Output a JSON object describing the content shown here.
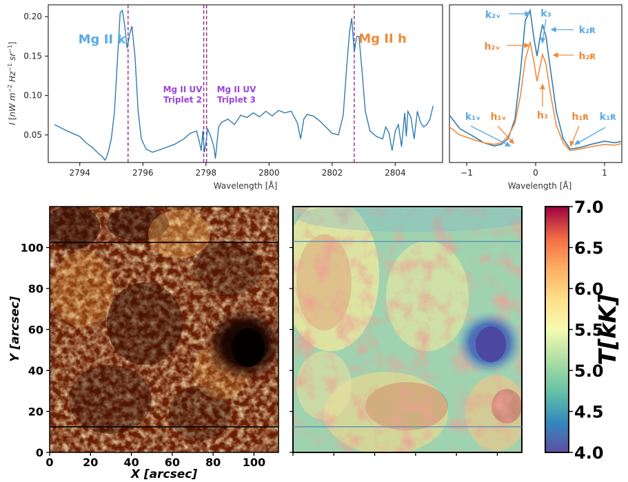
{
  "chart_data": [
    {
      "type": "line",
      "panel": "spectrum",
      "xlabel": "Wavelength [Å]",
      "ylabel": "I [nW m⁻² Hz⁻¹ sr⁻¹]",
      "ylabel_parts": {
        "var": "I ",
        "unit": "nW m",
        "e1": "−2",
        "hz": " Hz",
        "e2": "−1",
        "sr": " sr",
        "e3": "−1"
      },
      "xlim": [
        2793,
        2805.5
      ],
      "ylim": [
        0.015,
        0.215
      ],
      "xticks": [
        2794,
        2796,
        2798,
        2800,
        2802,
        2804
      ],
      "yticks": [
        0.05,
        0.1,
        0.15,
        0.2
      ],
      "ytick_labels": [
        "0.05",
        "0.10",
        "0.15",
        "0.20"
      ],
      "line_color": "#2f7ab0",
      "vlines": [
        2795.53,
        2797.93,
        2798.02,
        2802.7
      ],
      "vline_color": "#8b1a8b",
      "annotations": {
        "mgk": "Mg II k",
        "mgh": "Mg II h",
        "trip2_a": "Mg II UV",
        "trip2_b": "Triplet 2",
        "trip3_a": "Mg II UV",
        "trip3_b": "Triplet 3"
      },
      "x": [
        2793.2,
        2793.6,
        2794.0,
        2794.2,
        2794.4,
        2794.5,
        2794.6,
        2794.7,
        2794.8,
        2794.85,
        2794.9,
        2795.0,
        2795.1,
        2795.2,
        2795.28,
        2795.35,
        2795.42,
        2795.5,
        2795.58,
        2795.65,
        2795.75,
        2795.85,
        2795.95,
        2796.1,
        2796.3,
        2796.6,
        2797.0,
        2797.3,
        2797.5,
        2797.7,
        2797.8,
        2797.85,
        2797.9,
        2797.95,
        2798.0,
        2798.05,
        2798.15,
        2798.25,
        2798.3,
        2798.4,
        2798.5,
        2798.7,
        2798.9,
        2799.1,
        2799.3,
        2799.5,
        2799.7,
        2799.9,
        2800.1,
        2800.3,
        2800.5,
        2800.7,
        2800.9,
        2801.0,
        2801.1,
        2801.2,
        2801.4,
        2801.6,
        2801.8,
        2802.0,
        2802.2,
        2802.35,
        2802.45,
        2802.55,
        2802.62,
        2802.7,
        2802.78,
        2802.85,
        2802.95,
        2803.05,
        2803.2,
        2803.4,
        2803.6,
        2803.7,
        2803.8,
        2803.9,
        2804.0,
        2804.1,
        2804.2,
        2804.3,
        2804.35,
        2804.4,
        2804.5,
        2804.6,
        2804.7,
        2804.8,
        2804.9,
        2805.0,
        2805.1,
        2805.2
      ],
      "y": [
        0.063,
        0.055,
        0.048,
        0.04,
        0.034,
        0.03,
        0.026,
        0.023,
        0.018,
        0.022,
        0.028,
        0.045,
        0.08,
        0.15,
        0.205,
        0.208,
        0.19,
        0.16,
        0.178,
        0.188,
        0.15,
        0.08,
        0.045,
        0.032,
        0.028,
        0.032,
        0.038,
        0.045,
        0.052,
        0.055,
        0.04,
        0.03,
        0.055,
        0.028,
        0.04,
        0.058,
        0.048,
        0.035,
        0.02,
        0.06,
        0.066,
        0.07,
        0.063,
        0.075,
        0.072,
        0.078,
        0.073,
        0.08,
        0.074,
        0.081,
        0.078,
        0.08,
        0.065,
        0.045,
        0.07,
        0.076,
        0.074,
        0.068,
        0.06,
        0.052,
        0.05,
        0.075,
        0.13,
        0.18,
        0.198,
        0.155,
        0.175,
        0.175,
        0.13,
        0.08,
        0.055,
        0.048,
        0.045,
        0.06,
        0.053,
        0.03,
        0.055,
        0.063,
        0.035,
        0.078,
        0.048,
        0.08,
        0.072,
        0.045,
        0.08,
        0.066,
        0.06,
        0.063,
        0.07,
        0.087
      ]
    },
    {
      "type": "line",
      "panel": "profiles",
      "xlabel": "Wavelength [Å]",
      "xlim": [
        -1.25,
        1.25
      ],
      "xticks": [
        -1,
        0,
        1
      ],
      "xtick_labels": [
        "−1",
        "0",
        "1"
      ],
      "series": [
        {
          "color": "#2f7ab0",
          "x": [
            -1.25,
            -1.1,
            -0.9,
            -0.75,
            -0.6,
            -0.5,
            -0.4,
            -0.3,
            -0.22,
            -0.15,
            -0.08,
            -0.02,
            0.02,
            0.06,
            0.1,
            0.15,
            0.22,
            0.3,
            0.4,
            0.5,
            0.65,
            0.8,
            1.0,
            1.15,
            1.25
          ],
          "y": [
            0.075,
            0.058,
            0.048,
            0.04,
            0.036,
            0.038,
            0.045,
            0.07,
            0.13,
            0.195,
            0.208,
            0.17,
            0.15,
            0.172,
            0.19,
            0.175,
            0.13,
            0.08,
            0.045,
            0.032,
            0.034,
            0.038,
            0.042,
            0.04,
            0.042
          ]
        },
        {
          "color": "#f0893a",
          "x": [
            -1.25,
            -1.1,
            -0.9,
            -0.75,
            -0.6,
            -0.5,
            -0.4,
            -0.3,
            -0.22,
            -0.15,
            -0.08,
            -0.02,
            0.02,
            0.06,
            0.1,
            0.15,
            0.22,
            0.3,
            0.4,
            0.5,
            0.65,
            0.8,
            1.0,
            1.15,
            1.25
          ],
          "y": [
            0.06,
            0.05,
            0.044,
            0.04,
            0.038,
            0.04,
            0.048,
            0.065,
            0.1,
            0.145,
            0.168,
            0.14,
            0.118,
            0.135,
            0.152,
            0.14,
            0.1,
            0.062,
            0.04,
            0.03,
            0.032,
            0.035,
            0.038,
            0.037,
            0.039
          ]
        }
      ],
      "labels": {
        "k2v": "k₂ᵥ",
        "k3": "k₃",
        "k2r": "k₂ʀ",
        "h2v": "h₂ᵥ",
        "h2r": "h₂ʀ",
        "h3": "h₃",
        "k1v": "k₁ᵥ",
        "h1v": "h₁ᵥ",
        "h1r": "h₁ʀ",
        "k1r": "k₁ʀ"
      }
    },
    {
      "type": "heatmap",
      "panel": "intensity-map",
      "xlabel": "X [arcsec]",
      "ylabel": "Y [arcsec]",
      "xlim": [
        0,
        112
      ],
      "ylim": [
        0,
        120
      ],
      "xticks": [
        0,
        20,
        40,
        60,
        80,
        100
      ],
      "yticks": [
        0,
        20,
        40,
        60,
        80,
        100
      ],
      "colormap": "afmhot",
      "hlines": [
        102.5,
        12.5
      ]
    },
    {
      "type": "heatmap",
      "panel": "temperature-map",
      "xlim": [
        0,
        112
      ],
      "ylim": [
        0,
        120
      ],
      "colormap": "Spectral_r",
      "hlines": [
        103,
        12.5
      ],
      "colorbar": {
        "label": "T[kK]",
        "range": [
          4.0,
          7.0
        ],
        "ticks": [
          4.0,
          4.5,
          5.0,
          5.5,
          6.0,
          6.5,
          7.0
        ],
        "tick_labels": [
          "4.0",
          "4.5",
          "5.0",
          "5.5",
          "6.0",
          "6.5",
          "7.0"
        ]
      }
    }
  ],
  "colors": {
    "k_blue": "#5aa9e6",
    "h_orange": "#f0893a",
    "triplet_purple": "#9b45d8"
  }
}
